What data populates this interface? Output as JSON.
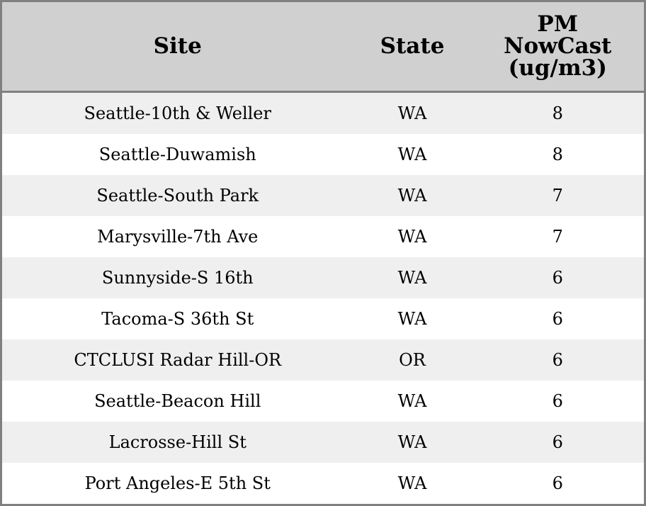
{
  "chart_data": {
    "type": "table",
    "columns": [
      "Site",
      "State",
      "PM NowCast (ug/m3)"
    ],
    "header_lines": [
      [
        "Site"
      ],
      [
        "State"
      ],
      [
        "PM",
        "NowCast",
        "(ug/m3)"
      ]
    ],
    "rows": [
      [
        "Seattle-10th & Weller",
        "WA",
        "8"
      ],
      [
        "Seattle-Duwamish",
        "WA",
        "8"
      ],
      [
        "Seattle-South Park",
        "WA",
        "7"
      ],
      [
        "Marysville-7th Ave",
        "WA",
        "7"
      ],
      [
        "Sunnyside-S 16th",
        "WA",
        "6"
      ],
      [
        "Tacoma-S 36th St",
        "WA",
        "6"
      ],
      [
        "CTCLUSI Radar Hill-OR",
        "OR",
        "6"
      ],
      [
        "Seattle-Beacon Hill",
        "WA",
        "6"
      ],
      [
        "Lacrosse-Hill St",
        "WA",
        "6"
      ],
      [
        "Port Angeles-E 5th St",
        "WA",
        "6"
      ]
    ],
    "colors": {
      "header_bg": "#d0d0d0",
      "stripe_bg": "#efefef",
      "border": "#808080"
    }
  }
}
